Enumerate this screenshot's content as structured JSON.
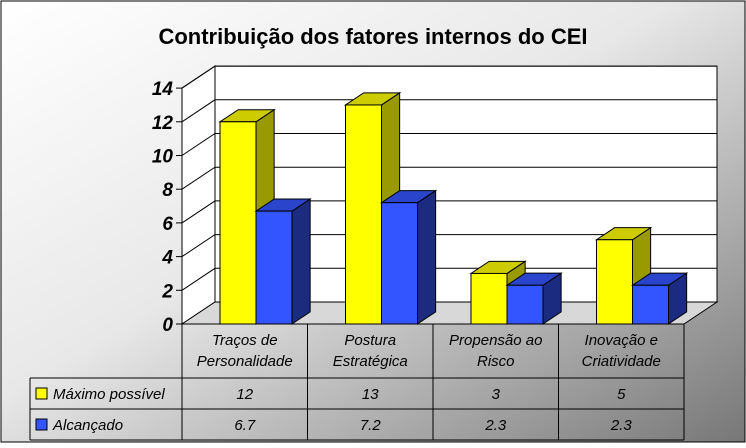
{
  "chart_data": {
    "type": "bar",
    "title": "Contribuição dos fatores internos do CEI",
    "categories": [
      [
        "Traços de",
        "Personalidade"
      ],
      [
        "Postura",
        "Estratégica"
      ],
      [
        "Propensão ao",
        "Risco"
      ],
      [
        "Inovação e",
        "Criatividade"
      ]
    ],
    "series": [
      {
        "name": "Máximo possível",
        "values": [
          12,
          13,
          3,
          5
        ],
        "labels": [
          "12",
          "13",
          "3",
          "5"
        ],
        "color": "#FFFF00",
        "side": "#999900",
        "top": "#CCCC00"
      },
      {
        "name": "Alcançado",
        "values": [
          6.7,
          7.2,
          2.3,
          2.3
        ],
        "labels": [
          "6.7",
          "7.2",
          "2.3",
          "2.3"
        ],
        "color": "#3355FF",
        "side": "#1A2B80",
        "top": "#2A44CC"
      }
    ],
    "y_ticks": [
      "0",
      "2",
      "4",
      "6",
      "8",
      "10",
      "12",
      "14"
    ],
    "ylim": [
      0,
      14
    ],
    "grid": true,
    "legend": "data-table"
  }
}
